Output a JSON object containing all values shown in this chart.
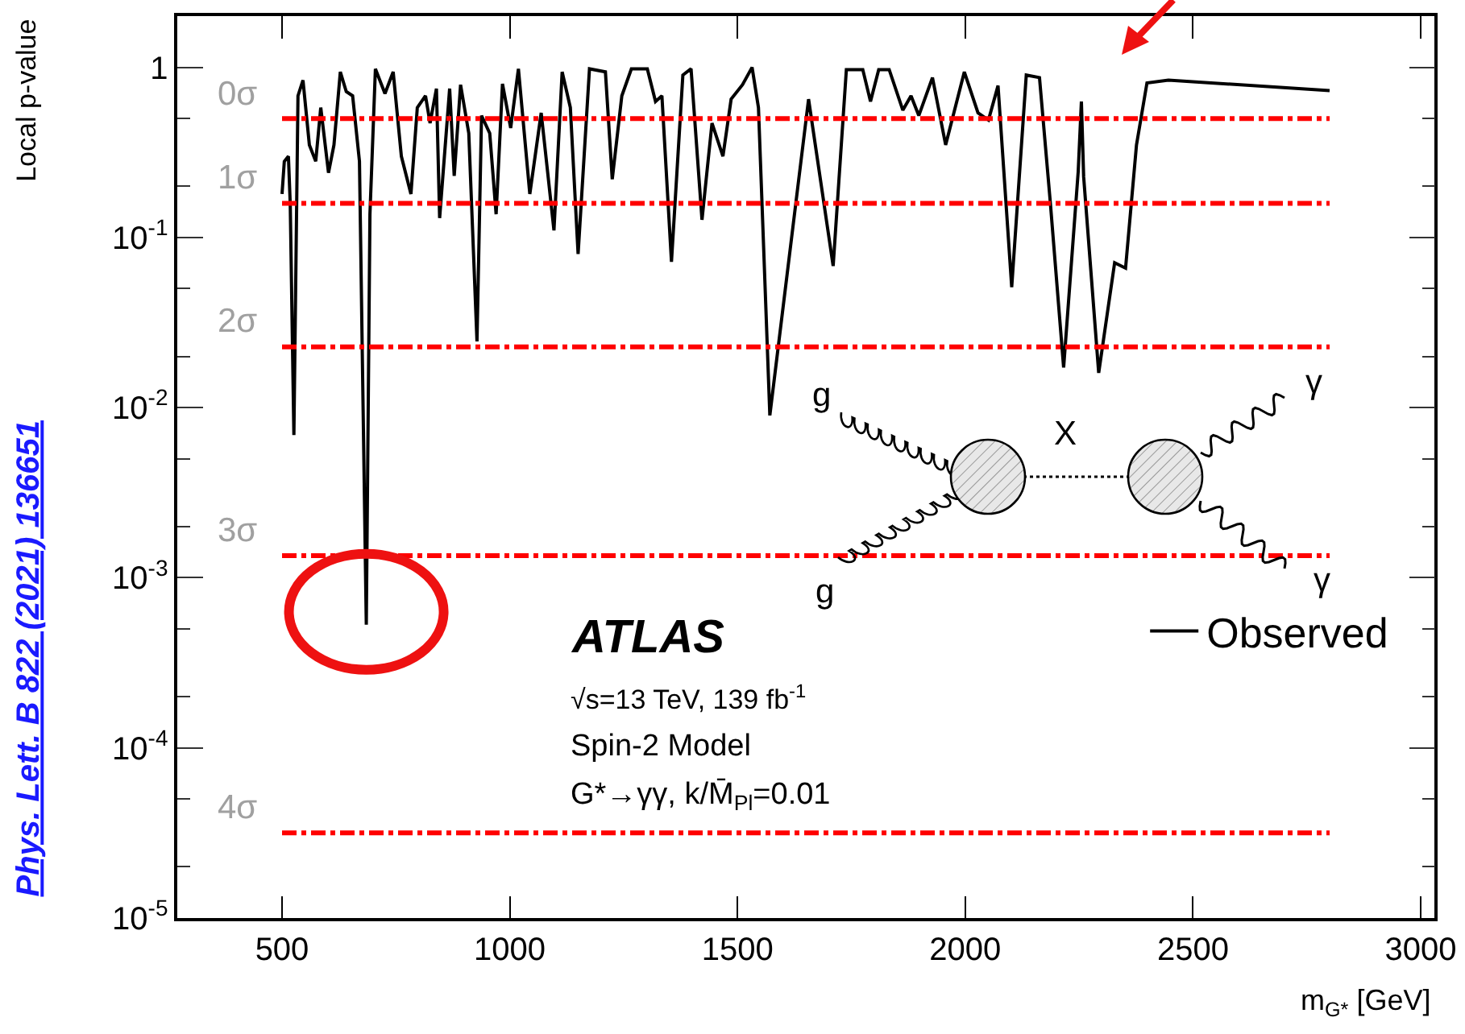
{
  "chart_data": {
    "type": "line",
    "ylabel": "Local p-value",
    "xlabel": "m$_{G*}$ [GeV]",
    "x": [
      500,
      505,
      514,
      518,
      526,
      535,
      546,
      560,
      574,
      585,
      602,
      614,
      628,
      641,
      655,
      670,
      685,
      693,
      705,
      726,
      744,
      762,
      783,
      797,
      815,
      825,
      839,
      846,
      868,
      878,
      892,
      910,
      928,
      938,
      956,
      970,
      984,
      1002,
      1019,
      1044,
      1069,
      1097,
      1115,
      1133,
      1150,
      1175,
      1210,
      1225,
      1246,
      1267,
      1302,
      1320,
      1334,
      1355,
      1380,
      1398,
      1422,
      1444,
      1468,
      1486,
      1511,
      1532,
      1546,
      1571,
      1656,
      1710,
      1739,
      1775,
      1792,
      1810,
      1833,
      1863,
      1881,
      1898,
      1928,
      1957,
      1998,
      2028,
      2051,
      2072,
      2102,
      2134,
      2163,
      2187,
      2216,
      2248,
      2255,
      2260,
      2293,
      2328,
      2352,
      2376,
      2399,
      2446,
      2800
    ],
    "series": [
      {
        "name": "Observed",
        "color": "#000000",
        "values": [
          0.18,
          0.28,
          0.3,
          0.157,
          0.0069,
          0.68,
          0.84,
          0.35,
          0.28,
          0.58,
          0.24,
          0.35,
          0.94,
          0.72,
          0.68,
          0.28,
          0.00053,
          0.137,
          0.98,
          0.7,
          0.94,
          0.3,
          0.18,
          0.58,
          0.68,
          0.47,
          0.75,
          0.13,
          0.75,
          0.23,
          0.79,
          0.41,
          0.0245,
          0.52,
          0.41,
          0.137,
          0.8,
          0.44,
          0.98,
          0.18,
          0.54,
          0.11,
          0.94,
          0.58,
          0.08,
          0.98,
          0.94,
          0.22,
          0.68,
          0.98,
          0.98,
          0.63,
          0.68,
          0.072,
          0.9,
          0.98,
          0.127,
          0.47,
          0.3,
          0.65,
          0.79,
          1.0,
          0.58,
          0.009,
          0.65,
          0.068,
          0.97,
          0.97,
          0.63,
          0.97,
          0.97,
          0.56,
          0.68,
          0.52,
          0.87,
          0.35,
          0.94,
          0.54,
          0.49,
          0.78,
          0.051,
          0.9,
          0.87,
          0.158,
          0.0172,
          0.244,
          0.63,
          0.227,
          0.016,
          0.071,
          0.066,
          0.35,
          0.81,
          0.84,
          0.73
        ]
      }
    ],
    "xlim": [
      270,
      3030
    ],
    "xticks": [
      500,
      1000,
      1500,
      2000,
      2500,
      3000
    ],
    "ylim": [
      1e-05,
      2
    ],
    "yticks": [
      {
        "value": 1,
        "label": "1"
      },
      {
        "value": 0.1,
        "label": "10$^{-1}$"
      },
      {
        "value": 0.01,
        "label": "10$^{-2}$"
      },
      {
        "value": 0.001,
        "label": "10$^{-3}$"
      },
      {
        "value": 0.0001,
        "label": "10$^{-4}$"
      },
      {
        "value": 1e-05,
        "label": "10$^{-5}$"
      }
    ],
    "log": "y",
    "grid": false,
    "legend": "right",
    "marker": "none",
    "line_style": "solid",
    "ref_lines": [
      {
        "axis": "y",
        "value": 0.5,
        "label": "0σ",
        "color": "#ff0000",
        "line_style": "dashed"
      },
      {
        "axis": "y",
        "value": 0.1587,
        "label": "1σ",
        "color": "#ff0000",
        "line_style": "dashed"
      },
      {
        "axis": "y",
        "value": 0.02275,
        "label": "2σ",
        "color": "#ff0000",
        "line_style": "dashed"
      },
      {
        "axis": "y",
        "value": 0.00135,
        "label": "3σ",
        "color": "#ff0000",
        "line_style": "dashed"
      },
      {
        "axis": "y",
        "value": 3.17e-05,
        "label": "4σ",
        "color": "#ff0000",
        "line_style": "dashed"
      }
    ],
    "annotations": [
      "ATLAS",
      "√s=13 TeV, 139 fb$^{-1}$",
      "Spin-2 Model",
      "G*→γγ, k/M̄$_{Pl}$=0.01",
      "Phys. Lett. B 822 (2021) 136651",
      "g",
      "g",
      "X",
      "γ",
      "γ"
    ]
  }
}
